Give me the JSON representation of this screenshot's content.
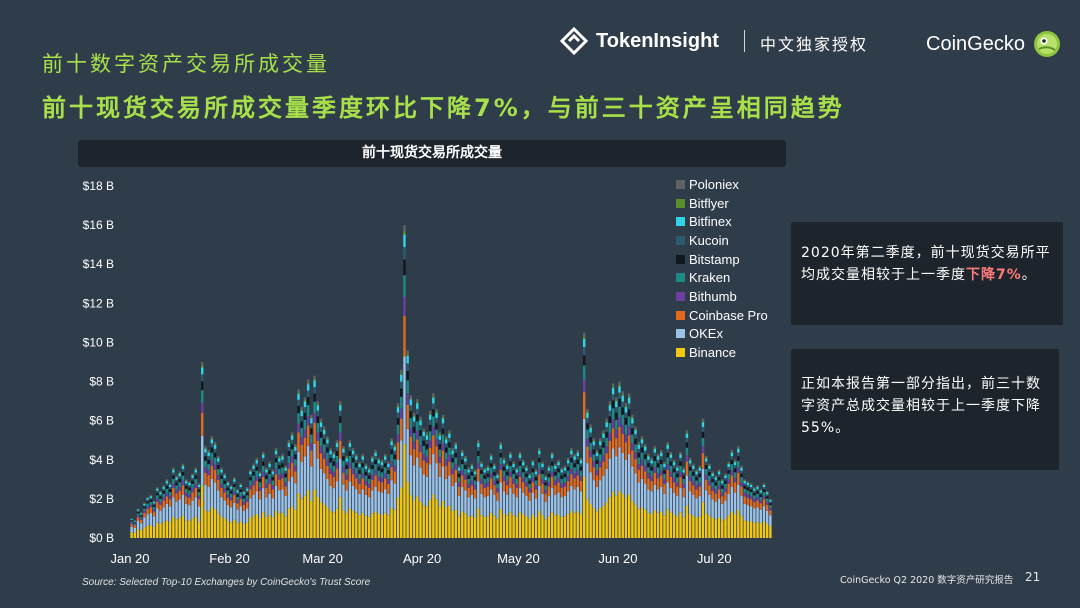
{
  "header": {
    "section_label": "前十数字资产交易所成交量",
    "headline": "前十现货交易所成交量季度环比下降7%，与前三十资产呈相同趋势",
    "brand_tokeninsight": "TokenInsight",
    "brand_exclusive": "中文独家授权",
    "brand_coingecko": "CoinGecko"
  },
  "notes": {
    "note1_text": "2020年第二季度，前十现货交易所平均成交量相较于上一季度",
    "note1_highlight": "下降7%",
    "note1_end": "。",
    "note2_text": "正如本报告第一部分指出，前三十数字资产总成交量相较于上一季度下降55%。"
  },
  "footer": {
    "source": "Source: Selected Top-10 Exchanges by CoinGecko's Trust Score",
    "report": "CoinGecko Q2 2020 数字资产研究报告",
    "page": "21"
  },
  "colors": {
    "background": "#2f3d4b",
    "accent_green": "#a8e04a",
    "highlight_red": "#ff7b7b",
    "panel": "#1d242c"
  },
  "chart_data": {
    "type": "bar",
    "stacked": true,
    "title": "前十现货交易所成交量",
    "x_tick_labels": [
      "Jan 20",
      "Feb 20",
      "Mar 20",
      "Apr 20",
      "May 20",
      "Jun 20",
      "Jul 20"
    ],
    "y_tick_labels": [
      "$0 B",
      "$2 B",
      "$4 B",
      "$6 B",
      "$8 B",
      "$10 B",
      "$12 B",
      "$14 B",
      "$16 B",
      "$18 B"
    ],
    "ylim": [
      0,
      18
    ],
    "y_unit": "B USD",
    "legend_position": "top-right",
    "series": [
      {
        "name": "Poloniex",
        "color": "#5f6368"
      },
      {
        "name": "Bitflyer",
        "color": "#5a8f29"
      },
      {
        "name": "Bitfinex",
        "color": "#2fd6e8"
      },
      {
        "name": "Kucoin",
        "color": "#2c5a6e"
      },
      {
        "name": "Bitstamp",
        "color": "#101820"
      },
      {
        "name": "Kraken",
        "color": "#1e8a86"
      },
      {
        "name": "Bithumb",
        "color": "#6b3fa0"
      },
      {
        "name": "Coinbase Pro",
        "color": "#e36a1c"
      },
      {
        "name": "OKEx",
        "color": "#9cc2e8"
      },
      {
        "name": "Binance",
        "color": "#f2c811"
      }
    ],
    "daily_totals_start": "2020-01-01",
    "daily_totals": [
      1.0,
      0.9,
      1.5,
      1.3,
      1.8,
      2.1,
      2.2,
      1.9,
      2.6,
      2.4,
      2.7,
      3.0,
      2.8,
      3.6,
      3.2,
      3.4,
      3.8,
      3.0,
      2.9,
      3.3,
      3.6,
      2.8,
      9.0,
      4.7,
      4.5,
      5.2,
      4.9,
      4.2,
      3.6,
      3.3,
      2.9,
      2.7,
      3.1,
      2.5,
      2.8,
      2.4,
      2.6,
      3.5,
      3.8,
      4.1,
      3.4,
      4.4,
      3.6,
      3.9,
      3.5,
      4.6,
      4.2,
      4.3,
      3.7,
      5.0,
      5.4,
      4.8,
      7.6,
      6.7,
      7.2,
      8.1,
      6.3,
      8.3,
      7.0,
      6.1,
      5.7,
      5.2,
      4.6,
      4.4,
      5.0,
      7.0,
      4.7,
      4.2,
      5.0,
      4.6,
      4.3,
      3.9,
      4.3,
      3.8,
      3.6,
      4.2,
      4.5,
      4.1,
      4.0,
      4.3,
      3.9,
      5.1,
      4.8,
      6.9,
      8.6,
      16.0,
      9.6,
      7.3,
      6.4,
      7.1,
      6.2,
      5.6,
      5.4,
      6.5,
      7.4,
      6.6,
      5.4,
      6.3,
      5.2,
      5.5,
      4.6,
      4.9,
      3.7,
      4.5,
      4.2,
      3.6,
      3.8,
      3.5,
      5.0,
      3.9,
      3.6,
      3.7,
      4.3,
      3.8,
      3.3,
      4.9,
      4.1,
      3.8,
      4.4,
      3.9,
      3.6,
      4.4,
      4.0,
      3.7,
      3.3,
      4.0,
      3.5,
      4.6,
      3.9,
      3.2,
      3.7,
      4.4,
      3.8,
      4.0,
      3.6,
      3.7,
      4.1,
      4.6,
      4.3,
      4.5,
      4.1,
      10.5,
      6.6,
      5.8,
      5.1,
      4.5,
      5.1,
      5.5,
      6.1,
      7.0,
      7.9,
      7.2,
      8.0,
      7.5,
      6.9,
      7.4,
      6.3,
      5.7,
      4.9,
      5.2,
      4.8,
      4.3,
      4.1,
      4.7,
      4.3,
      4.5,
      3.9,
      4.9,
      4.4,
      4.0,
      3.7,
      4.4,
      3.6,
      5.5,
      4.1,
      3.8,
      3.5,
      3.7,
      6.1,
      4.2,
      3.8,
      3.4,
      3.2,
      3.5,
      3.0,
      3.3,
      3.9,
      4.5,
      4.0,
      4.7,
      3.7,
      3.0,
      2.9,
      2.8,
      2.6,
      2.7,
      2.5,
      2.8,
      2.4,
      2.0
    ],
    "stack_shares": [
      0.02,
      0.01,
      0.04,
      0.04,
      0.05,
      0.07,
      0.06,
      0.13,
      0.28,
      0.3
    ]
  }
}
